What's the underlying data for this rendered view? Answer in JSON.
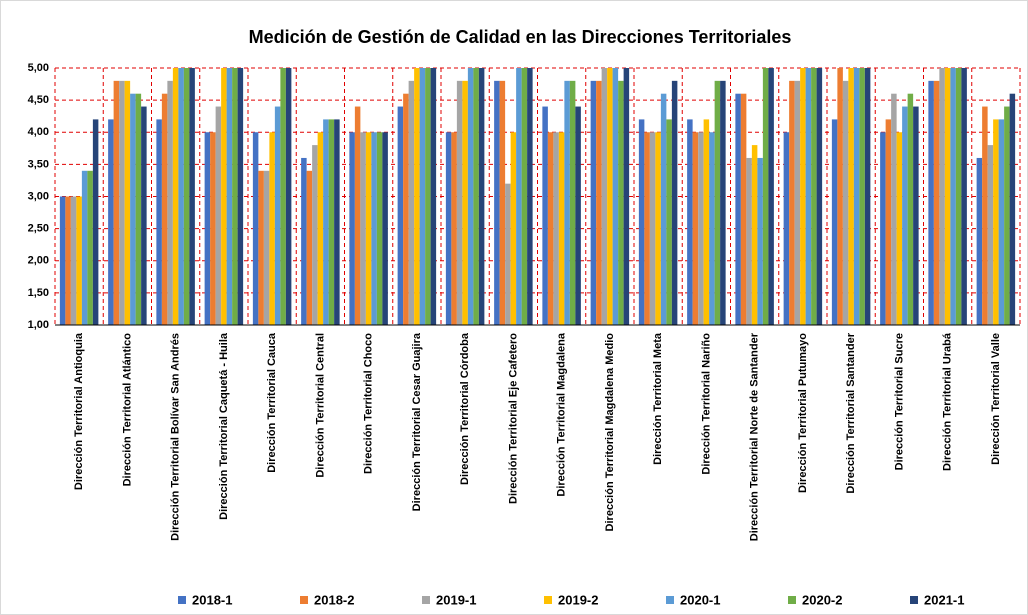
{
  "chart_data": {
    "type": "bar",
    "title": "Medición de Gestión de Calidad en las Direcciones Territoriales",
    "categories": [
      "Dirección Territorial Antioquia",
      "Dirección Territorial Atlántico",
      "Dirección Territorial Bolívar San Andrés",
      "Dirección Territorial Caquetá - Huila",
      "Dirección Territorial Cauca",
      "Dirección Territorial Central",
      "Dirección Territorial Choco",
      "Dirección Territorial Cesar Guajira",
      "Dirección Territorial Córdoba",
      "Dirección Territorial Eje Cafetero",
      "Dirección Territorial Magdalena",
      "Dirección Territorial Magdalena Medio",
      "Dirección Territorial Meta",
      "Dirección Territorial Nariño",
      "Dirección Territorial Norte de Santander",
      "Dirección Territorial Putumayo",
      "Dirección Territorial Santander",
      "Dirección Territorial Sucre",
      "Dirección Territorial Urabá",
      "Dirección Territorial Valle"
    ],
    "series": [
      {
        "name": "2018-1",
        "color": "#4472c4",
        "values": [
          3.0,
          4.2,
          4.2,
          4.0,
          4.0,
          3.6,
          4.0,
          4.4,
          4.0,
          4.8,
          4.4,
          4.8,
          4.2,
          4.2,
          4.6,
          4.0,
          4.2,
          4.0,
          4.8,
          3.6
        ]
      },
      {
        "name": "2018-2",
        "color": "#ed7d31",
        "values": [
          3.0,
          4.8,
          4.6,
          4.0,
          3.4,
          3.4,
          4.4,
          4.6,
          4.0,
          4.8,
          4.0,
          4.8,
          4.0,
          4.0,
          4.6,
          4.8,
          5.0,
          4.2,
          4.8,
          4.4
        ]
      },
      {
        "name": "2019-1",
        "color": "#a5a5a5",
        "values": [
          3.0,
          4.8,
          4.8,
          4.4,
          3.4,
          3.8,
          4.0,
          4.8,
          4.8,
          3.2,
          4.0,
          5.0,
          4.0,
          4.0,
          3.6,
          4.8,
          4.8,
          4.6,
          5.0,
          3.8
        ]
      },
      {
        "name": "2019-2",
        "color": "#ffc000",
        "values": [
          3.0,
          4.8,
          5.0,
          5.0,
          4.0,
          4.0,
          4.0,
          5.0,
          4.8,
          4.0,
          4.0,
          5.0,
          4.0,
          4.2,
          3.8,
          5.0,
          5.0,
          4.0,
          5.0,
          4.2
        ]
      },
      {
        "name": "2020-1",
        "color": "#5b9bd5",
        "values": [
          3.4,
          4.6,
          5.0,
          5.0,
          4.4,
          4.2,
          4.0,
          5.0,
          5.0,
          5.0,
          4.8,
          5.0,
          4.6,
          4.0,
          3.6,
          5.0,
          5.0,
          4.4,
          5.0,
          4.2
        ]
      },
      {
        "name": "2020-2",
        "color": "#70ad47",
        "values": [
          3.4,
          4.6,
          5.0,
          5.0,
          5.0,
          4.2,
          4.0,
          5.0,
          5.0,
          5.0,
          4.8,
          4.8,
          4.2,
          4.8,
          5.0,
          5.0,
          5.0,
          4.6,
          5.0,
          4.4
        ]
      },
      {
        "name": "2021-1",
        "color": "#264478",
        "values": [
          4.2,
          4.4,
          5.0,
          5.0,
          5.0,
          4.2,
          4.0,
          5.0,
          5.0,
          5.0,
          4.4,
          5.0,
          4.8,
          4.8,
          5.0,
          5.0,
          5.0,
          4.4,
          5.0,
          4.6
        ]
      }
    ],
    "ylim": [
      1,
      5
    ],
    "yticks": [
      {
        "value": 1,
        "label": "1,00"
      },
      {
        "value": 1.5,
        "label": "1,50"
      },
      {
        "value": 2,
        "label": "2,00"
      },
      {
        "value": 2.5,
        "label": "2,50"
      },
      {
        "value": 3,
        "label": "3,00"
      },
      {
        "value": 3.5,
        "label": "3,50"
      },
      {
        "value": 4,
        "label": "4,00"
      },
      {
        "value": 4.5,
        "label": "4,50"
      },
      {
        "value": 5,
        "label": "5,00"
      }
    ],
    "grid": true,
    "legend": "bottom"
  }
}
